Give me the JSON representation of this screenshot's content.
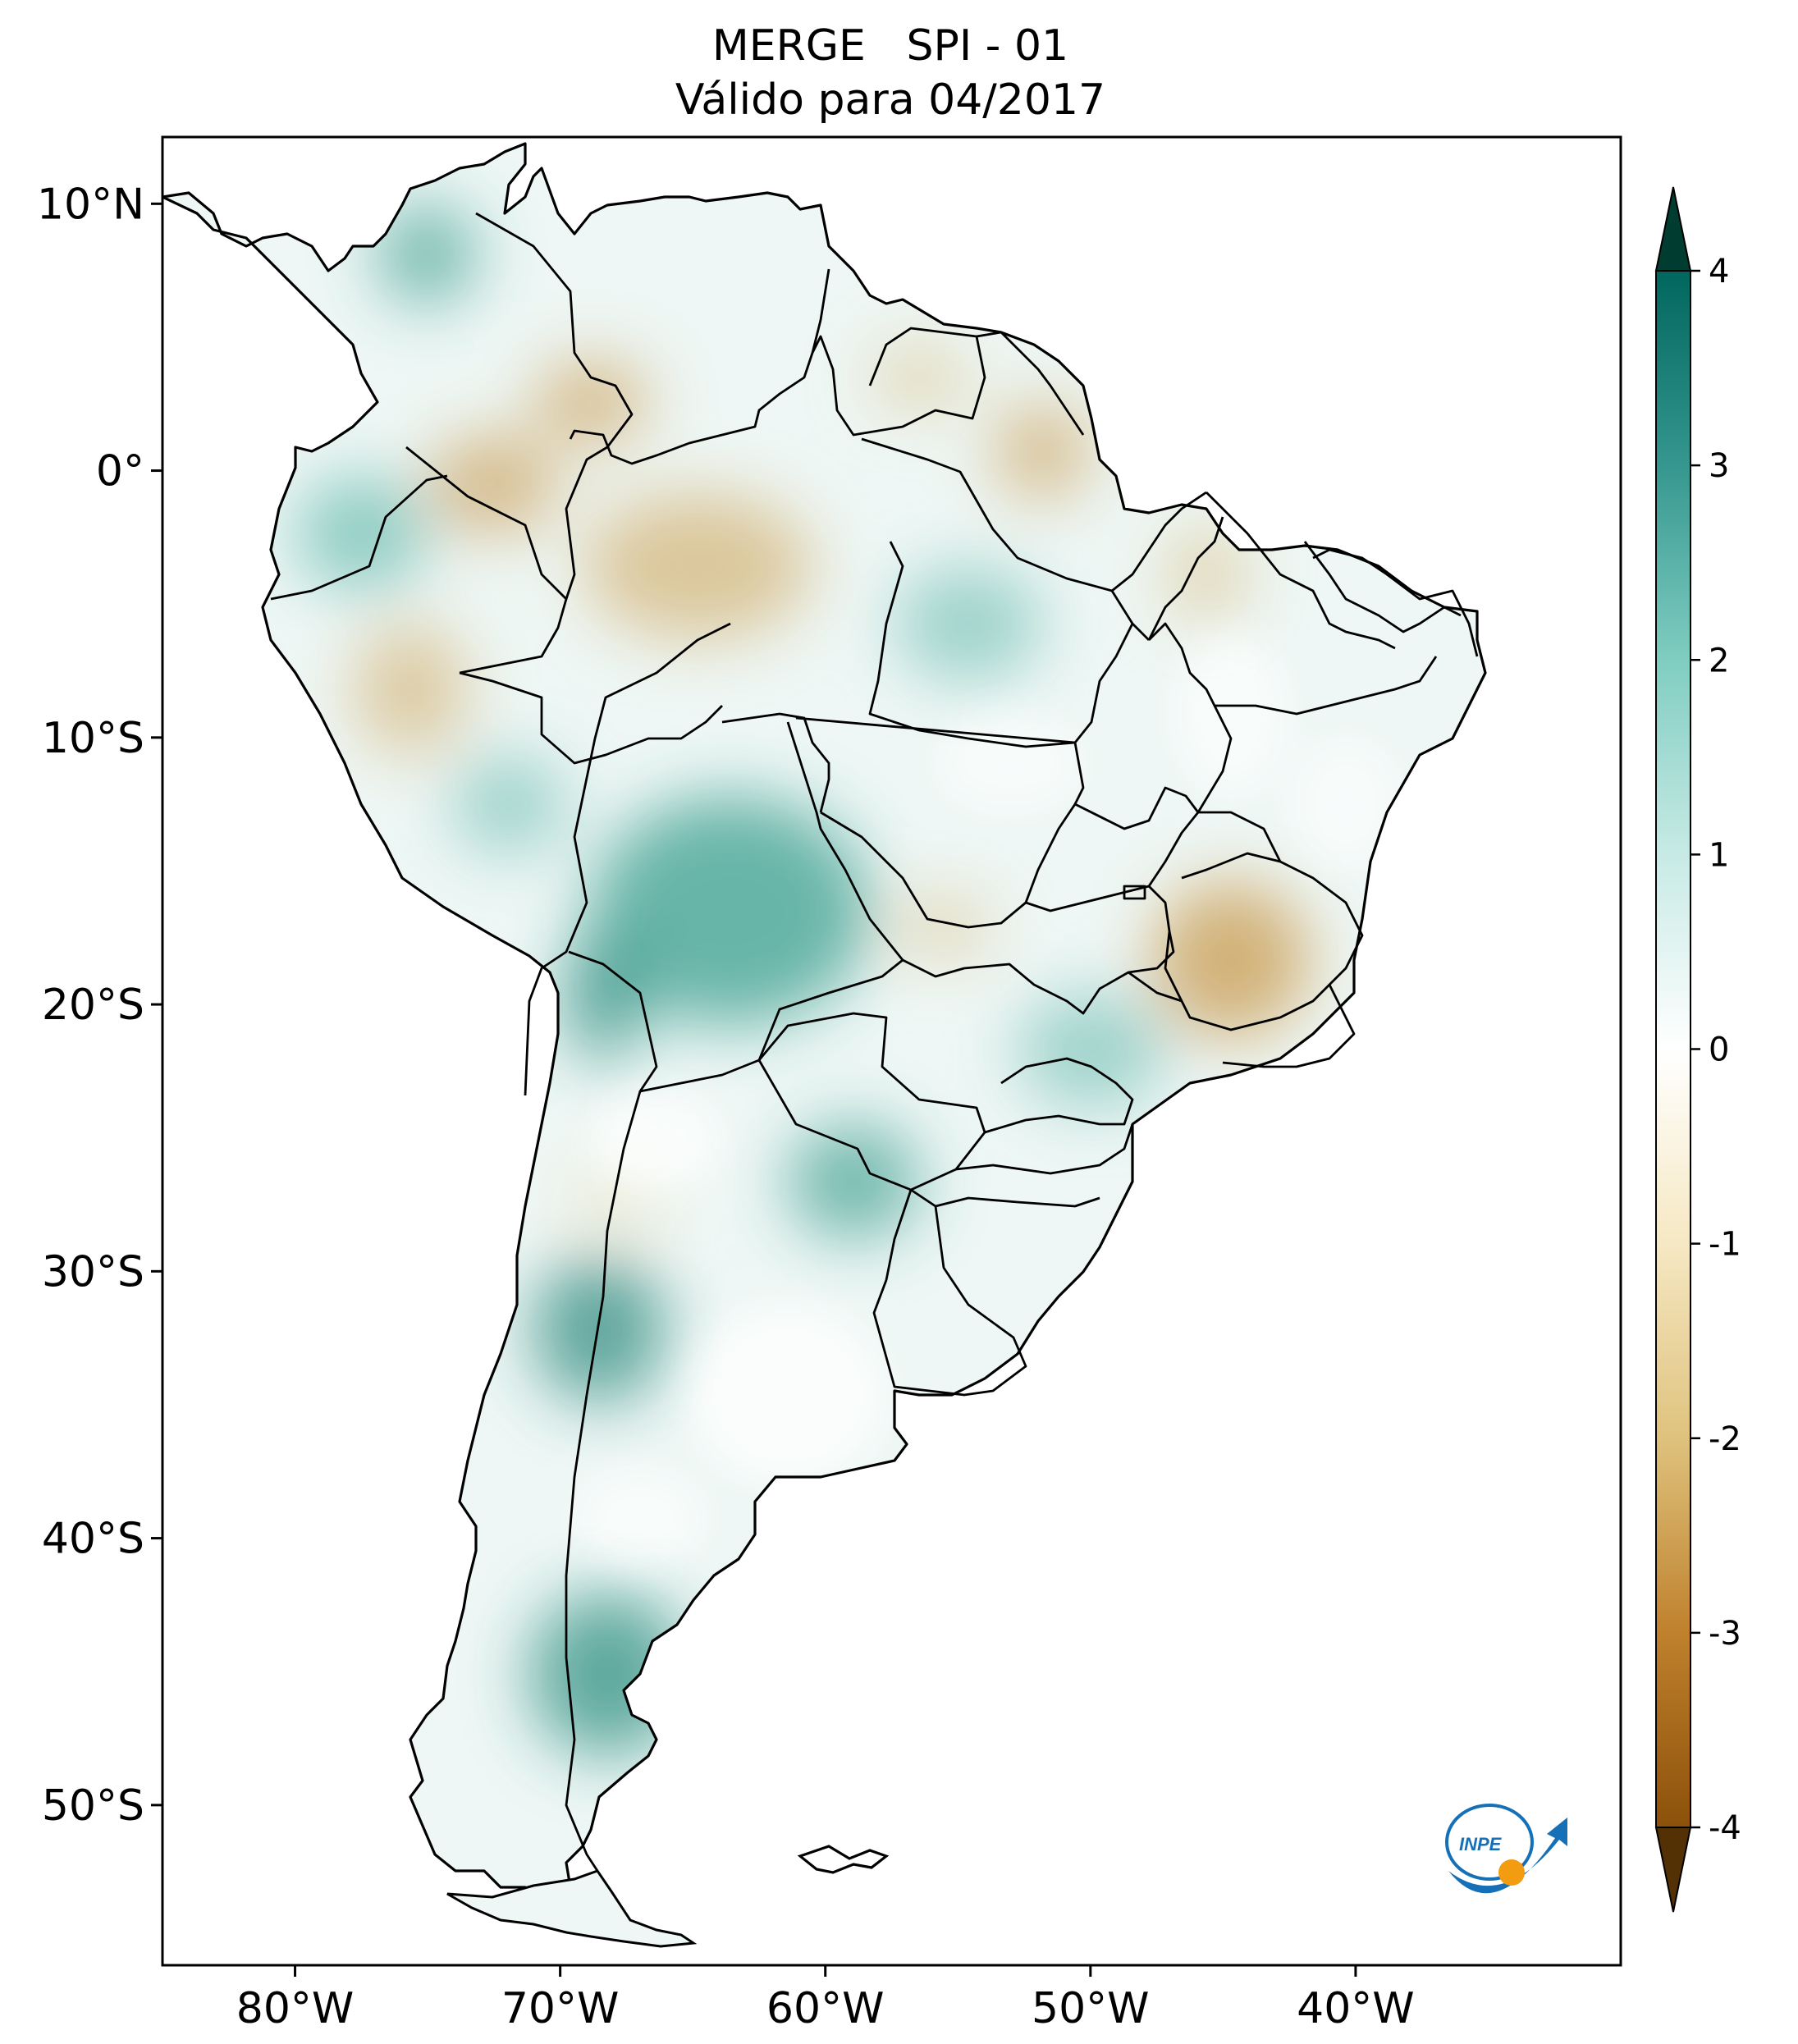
{
  "title": {
    "line1": "MERGE   SPI - 01",
    "line2": "Válido para 04/2017"
  },
  "map": {
    "lon_range": [
      -85,
      -30
    ],
    "lat_range": [
      -56,
      12.5
    ],
    "lon_ticks": [
      {
        "value": -80,
        "label": "80°W"
      },
      {
        "value": -70,
        "label": "70°W"
      },
      {
        "value": -60,
        "label": "60°W"
      },
      {
        "value": -50,
        "label": "50°W"
      },
      {
        "value": -40,
        "label": "40°W"
      }
    ],
    "lat_ticks": [
      {
        "value": 10,
        "label": "10°N"
      },
      {
        "value": 0,
        "label": "0°"
      },
      {
        "value": -10,
        "label": "10°S"
      },
      {
        "value": -20,
        "label": "20°S"
      },
      {
        "value": -30,
        "label": "30°S"
      },
      {
        "value": -40,
        "label": "40°S"
      },
      {
        "value": -50,
        "label": "50°S"
      }
    ],
    "region": "South America",
    "colormap": "BrBG",
    "high_spi_color": "#2a9d8a",
    "low_spi_color": "#c89a4e",
    "border_color": "#000000"
  },
  "colorbar": {
    "min": -4,
    "max": 4,
    "extend": "both",
    "ticks": [
      "4",
      "3",
      "2",
      "1",
      "0",
      "-1",
      "-2",
      "-3",
      "-4"
    ],
    "colors": [
      "#543005",
      "#8c510a",
      "#bf812d",
      "#dfc27d",
      "#f6e8c3",
      "#ffffff",
      "#c7eae5",
      "#80cdc1",
      "#35978f",
      "#01665e",
      "#003c30"
    ]
  },
  "logo": {
    "text": "INPE",
    "color": "#1570b8",
    "accent": "#f39c12"
  }
}
